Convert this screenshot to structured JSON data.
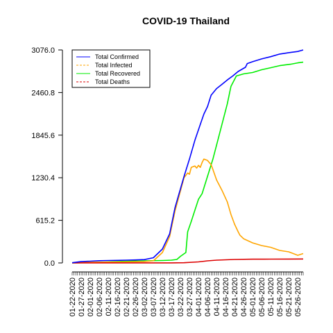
{
  "chart_data": {
    "type": "line",
    "title": "COVID-19 Thailand",
    "xlabel": "",
    "ylabel": "",
    "ylim": [
      0,
      3076
    ],
    "y_ticks": [
      "0.0",
      "615.2",
      "1230.4",
      "1845.6",
      "2460.8",
      "3076.0"
    ],
    "x_tick_labels": [
      "01-22-2020",
      "01-27-2020",
      "02-01-2020",
      "02-06-2020",
      "02-11-2020",
      "02-16-2020",
      "02-21-2020",
      "02-26-2020",
      "03-02-2020",
      "03-07-2020",
      "03-12-2020",
      "03-17-2020",
      "03-22-2020",
      "03-27-2020",
      "04-01-2020",
      "04-06-2020",
      "04-11-2020",
      "04-16-2020",
      "04-21-2020",
      "04-26-2020",
      "05-01-2020",
      "05-06-2020",
      "05-11-2020",
      "05-16-2020",
      "05-21-2020",
      "05-26-2020"
    ],
    "grid": false,
    "legend_position": "top-left",
    "x_day_count": 128,
    "series": [
      {
        "name": "Total Confirmed",
        "color": "#0000ff",
        "dash": "solid",
        "points": [
          [
            0,
            3
          ],
          [
            5,
            19
          ],
          [
            10,
            25
          ],
          [
            15,
            32
          ],
          [
            20,
            35
          ],
          [
            25,
            37
          ],
          [
            30,
            40
          ],
          [
            35,
            43
          ],
          [
            40,
            48
          ],
          [
            45,
            75
          ],
          [
            50,
            200
          ],
          [
            54,
            420
          ],
          [
            57,
            800
          ],
          [
            62,
            1250
          ],
          [
            65,
            1500
          ],
          [
            68,
            1770
          ],
          [
            71,
            2000
          ],
          [
            73,
            2150
          ],
          [
            75,
            2258
          ],
          [
            77,
            2423
          ],
          [
            80,
            2518
          ],
          [
            83,
            2579
          ],
          [
            86,
            2643
          ],
          [
            89,
            2700
          ],
          [
            92,
            2765
          ],
          [
            95,
            2810
          ],
          [
            96,
            2826
          ],
          [
            97,
            2880
          ],
          [
            100,
            2907
          ],
          [
            105,
            2947
          ],
          [
            110,
            2979
          ],
          [
            115,
            3017
          ],
          [
            120,
            3037
          ],
          [
            125,
            3054
          ],
          [
            128,
            3076
          ]
        ]
      },
      {
        "name": "Total Infected",
        "color": "#ffa500",
        "dash": "dashed",
        "points": [
          [
            0,
            0
          ],
          [
            10,
            10
          ],
          [
            20,
            12
          ],
          [
            30,
            15
          ],
          [
            40,
            20
          ],
          [
            45,
            30
          ],
          [
            50,
            150
          ],
          [
            54,
            380
          ],
          [
            57,
            750
          ],
          [
            62,
            1230
          ],
          [
            64,
            1300
          ],
          [
            65,
            1280
          ],
          [
            66,
            1380
          ],
          [
            68,
            1400
          ],
          [
            69,
            1370
          ],
          [
            70,
            1410
          ],
          [
            71,
            1380
          ],
          [
            72,
            1450
          ],
          [
            73,
            1500
          ],
          [
            75,
            1480
          ],
          [
            77,
            1420
          ],
          [
            78,
            1350
          ],
          [
            80,
            1200
          ],
          [
            83,
            1050
          ],
          [
            86,
            880
          ],
          [
            88,
            700
          ],
          [
            90,
            560
          ],
          [
            92,
            450
          ],
          [
            93,
            400
          ],
          [
            95,
            350
          ],
          [
            100,
            290
          ],
          [
            105,
            250
          ],
          [
            110,
            225
          ],
          [
            115,
            180
          ],
          [
            120,
            160
          ],
          [
            125,
            110
          ],
          [
            128,
            135
          ]
        ]
      },
      {
        "name": "Total Recovered",
        "color": "#00ee00",
        "dash": "solid",
        "points": [
          [
            0,
            0
          ],
          [
            10,
            5
          ],
          [
            20,
            15
          ],
          [
            30,
            25
          ],
          [
            40,
            30
          ],
          [
            50,
            35
          ],
          [
            55,
            40
          ],
          [
            58,
            50
          ],
          [
            60,
            95
          ],
          [
            63,
            150
          ],
          [
            64,
            450
          ],
          [
            66,
            600
          ],
          [
            68,
            760
          ],
          [
            70,
            920
          ],
          [
            72,
            1000
          ],
          [
            75,
            1250
          ],
          [
            78,
            1500
          ],
          [
            81,
            1800
          ],
          [
            84,
            2100
          ],
          [
            86,
            2300
          ],
          [
            88,
            2550
          ],
          [
            91,
            2700
          ],
          [
            95,
            2730
          ],
          [
            100,
            2750
          ],
          [
            105,
            2790
          ],
          [
            110,
            2820
          ],
          [
            115,
            2850
          ],
          [
            118,
            2860
          ],
          [
            121,
            2870
          ],
          [
            125,
            2890
          ],
          [
            128,
            2900
          ]
        ]
      },
      {
        "name": "Total Deaths",
        "color": "#dd0000",
        "dash": "dashed",
        "points": [
          [
            0,
            0
          ],
          [
            40,
            1
          ],
          [
            55,
            1
          ],
          [
            62,
            3
          ],
          [
            70,
            15
          ],
          [
            75,
            30
          ],
          [
            80,
            40
          ],
          [
            90,
            50
          ],
          [
            100,
            54
          ],
          [
            110,
            55
          ],
          [
            120,
            56
          ],
          [
            128,
            57
          ]
        ]
      }
    ]
  }
}
